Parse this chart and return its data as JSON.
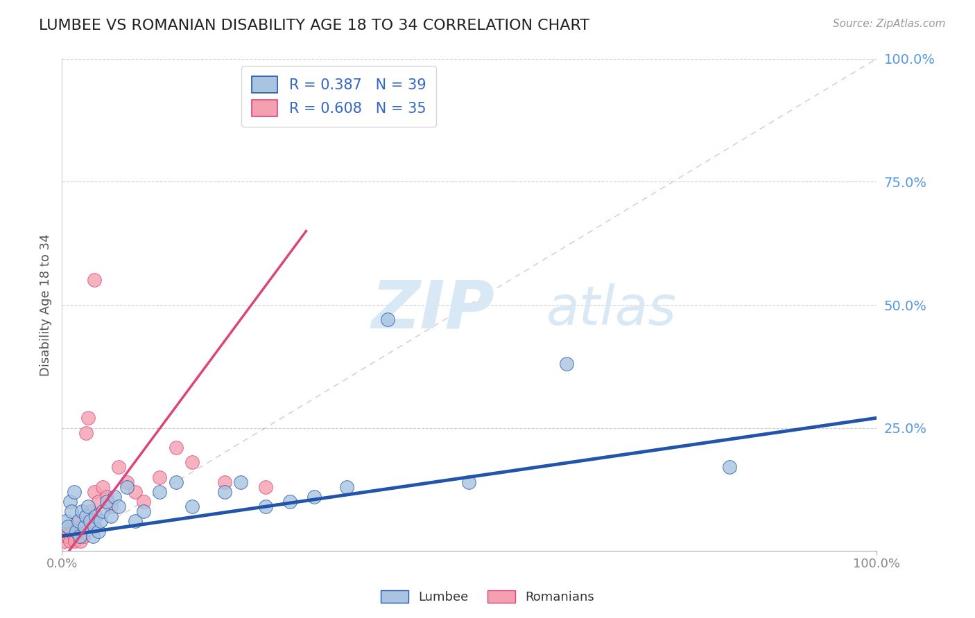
{
  "title": "LUMBEE VS ROMANIAN DISABILITY AGE 18 TO 34 CORRELATION CHART",
  "source_text": "Source: ZipAtlas.com",
  "ylabel": "Disability Age 18 to 34",
  "xlim": [
    0,
    1
  ],
  "ylim": [
    0,
    1
  ],
  "ytick_positions": [
    0.25,
    0.5,
    0.75,
    1.0
  ],
  "lumbee_R": 0.387,
  "lumbee_N": 39,
  "romanian_R": 0.608,
  "romanian_N": 35,
  "lumbee_color": "#a8c4e0",
  "romanian_color": "#f4a0b0",
  "lumbee_line_color": "#2255aa",
  "romanian_line_color": "#dd4477",
  "title_color": "#222222",
  "right_label_color": "#5599dd",
  "watermark_color": "#d8e8f5",
  "watermark_zip": "ZIP",
  "watermark_atlas": "atlas",
  "background_color": "#ffffff",
  "lumbee_x": [
    0.005,
    0.008,
    0.01,
    0.012,
    0.015,
    0.018,
    0.02,
    0.022,
    0.025,
    0.028,
    0.03,
    0.032,
    0.035,
    0.038,
    0.04,
    0.042,
    0.045,
    0.048,
    0.05,
    0.055,
    0.06,
    0.065,
    0.07,
    0.08,
    0.09,
    0.1,
    0.12,
    0.14,
    0.16,
    0.2,
    0.22,
    0.25,
    0.28,
    0.31,
    0.35,
    0.4,
    0.5,
    0.62,
    0.82
  ],
  "lumbee_y": [
    0.06,
    0.05,
    0.1,
    0.08,
    0.12,
    0.04,
    0.06,
    0.03,
    0.08,
    0.05,
    0.07,
    0.09,
    0.06,
    0.03,
    0.05,
    0.07,
    0.04,
    0.06,
    0.08,
    0.1,
    0.07,
    0.11,
    0.09,
    0.13,
    0.06,
    0.08,
    0.12,
    0.14,
    0.09,
    0.12,
    0.14,
    0.09,
    0.1,
    0.11,
    0.13,
    0.47,
    0.14,
    0.38,
    0.17
  ],
  "romanian_x": [
    0.003,
    0.005,
    0.007,
    0.008,
    0.01,
    0.012,
    0.013,
    0.015,
    0.016,
    0.018,
    0.02,
    0.022,
    0.023,
    0.025,
    0.027,
    0.028,
    0.03,
    0.032,
    0.035,
    0.038,
    0.04,
    0.045,
    0.05,
    0.055,
    0.06,
    0.07,
    0.08,
    0.09,
    0.1,
    0.12,
    0.14,
    0.16,
    0.2,
    0.25,
    0.04
  ],
  "romanian_y": [
    0.02,
    0.03,
    0.04,
    0.03,
    0.02,
    0.04,
    0.05,
    0.03,
    0.02,
    0.04,
    0.06,
    0.03,
    0.02,
    0.05,
    0.03,
    0.04,
    0.24,
    0.27,
    0.08,
    0.06,
    0.12,
    0.1,
    0.13,
    0.11,
    0.09,
    0.17,
    0.14,
    0.12,
    0.1,
    0.15,
    0.21,
    0.18,
    0.14,
    0.13,
    0.55
  ],
  "lumbee_line_x": [
    0.0,
    1.0
  ],
  "lumbee_line_y": [
    0.03,
    0.27
  ],
  "romanian_line_x": [
    0.0,
    0.3
  ],
  "romanian_line_y": [
    -0.02,
    0.65
  ]
}
